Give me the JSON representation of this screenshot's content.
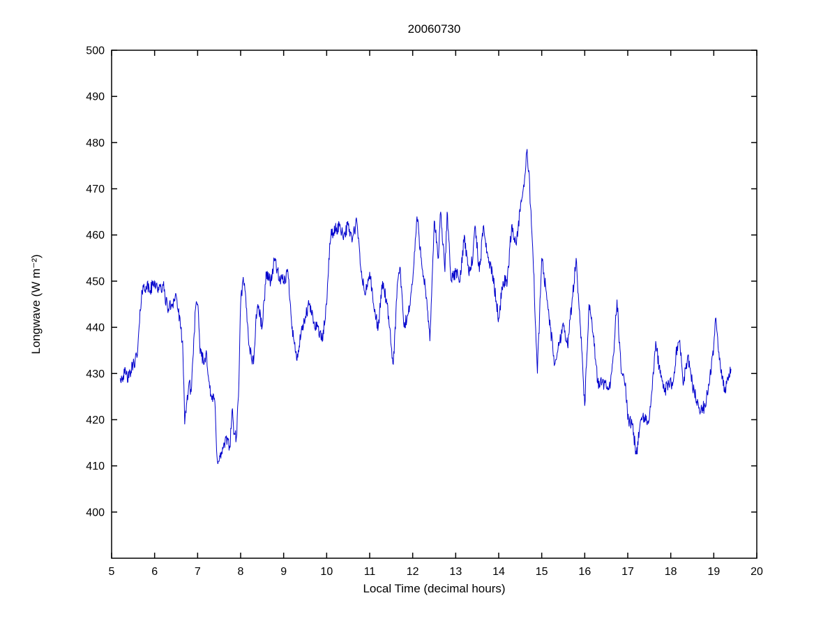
{
  "figure": {
    "background": "#ffffff"
  },
  "chart_data": {
    "type": "line",
    "title": "20060730",
    "xlabel": "Local Time (decimal hours)",
    "ylabel": "Longwave (W m⁻²)",
    "xlim": [
      5,
      20
    ],
    "ylim": [
      390,
      500
    ],
    "xticks": [
      5,
      6,
      7,
      8,
      9,
      10,
      11,
      12,
      13,
      14,
      15,
      16,
      17,
      18,
      19,
      20
    ],
    "yticks": [
      400,
      410,
      420,
      430,
      440,
      450,
      460,
      470,
      480,
      490,
      500
    ],
    "grid": false,
    "legend": "none",
    "axis_color": "#000000",
    "series": [
      {
        "name": "longwave",
        "color": "#0000cc",
        "points": [
          [
            5.2,
            429
          ],
          [
            5.3,
            430
          ],
          [
            5.4,
            429
          ],
          [
            5.5,
            432
          ],
          [
            5.6,
            434
          ],
          [
            5.65,
            441
          ],
          [
            5.7,
            448
          ],
          [
            5.8,
            449
          ],
          [
            5.9,
            448
          ],
          [
            6.0,
            450
          ],
          [
            6.1,
            448
          ],
          [
            6.2,
            449
          ],
          [
            6.3,
            444
          ],
          [
            6.4,
            445
          ],
          [
            6.5,
            447
          ],
          [
            6.6,
            440
          ],
          [
            6.65,
            437
          ],
          [
            6.7,
            419
          ],
          [
            6.75,
            424
          ],
          [
            6.8,
            428
          ],
          [
            6.85,
            426
          ],
          [
            6.95,
            444
          ],
          [
            7.0,
            445
          ],
          [
            7.05,
            436
          ],
          [
            7.15,
            432
          ],
          [
            7.2,
            435
          ],
          [
            7.3,
            425
          ],
          [
            7.4,
            424
          ],
          [
            7.45,
            412
          ],
          [
            7.5,
            411
          ],
          [
            7.6,
            414
          ],
          [
            7.7,
            416
          ],
          [
            7.75,
            414
          ],
          [
            7.8,
            422
          ],
          [
            7.85,
            417
          ],
          [
            7.9,
            416
          ],
          [
            7.95,
            425
          ],
          [
            8.0,
            445
          ],
          [
            8.05,
            450
          ],
          [
            8.1,
            448
          ],
          [
            8.2,
            436
          ],
          [
            8.3,
            432
          ],
          [
            8.35,
            441
          ],
          [
            8.4,
            445
          ],
          [
            8.5,
            440
          ],
          [
            8.6,
            452
          ],
          [
            8.7,
            450
          ],
          [
            8.8,
            455
          ],
          [
            8.9,
            450
          ],
          [
            9.0,
            450
          ],
          [
            9.1,
            452
          ],
          [
            9.2,
            440
          ],
          [
            9.3,
            433
          ],
          [
            9.4,
            438
          ],
          [
            9.5,
            442
          ],
          [
            9.6,
            445
          ],
          [
            9.7,
            441
          ],
          [
            9.8,
            440
          ],
          [
            9.9,
            437
          ],
          [
            10.0,
            445
          ],
          [
            10.05,
            455
          ],
          [
            10.1,
            460
          ],
          [
            10.2,
            461
          ],
          [
            10.3,
            462
          ],
          [
            10.4,
            460
          ],
          [
            10.5,
            462
          ],
          [
            10.6,
            459
          ],
          [
            10.7,
            463
          ],
          [
            10.8,
            452
          ],
          [
            10.9,
            447
          ],
          [
            11.0,
            452
          ],
          [
            11.1,
            444
          ],
          [
            11.2,
            440
          ],
          [
            11.3,
            450
          ],
          [
            11.4,
            445
          ],
          [
            11.5,
            436
          ],
          [
            11.55,
            432
          ],
          [
            11.65,
            450
          ],
          [
            11.7,
            453
          ],
          [
            11.8,
            440
          ],
          [
            11.9,
            443
          ],
          [
            12.0,
            450
          ],
          [
            12.1,
            464
          ],
          [
            12.2,
            455
          ],
          [
            12.3,
            448
          ],
          [
            12.4,
            437
          ],
          [
            12.5,
            463
          ],
          [
            12.6,
            455
          ],
          [
            12.65,
            465
          ],
          [
            12.75,
            452
          ],
          [
            12.8,
            465
          ],
          [
            12.9,
            450
          ],
          [
            13.0,
            452
          ],
          [
            13.1,
            450
          ],
          [
            13.2,
            460
          ],
          [
            13.3,
            452
          ],
          [
            13.4,
            455
          ],
          [
            13.45,
            462
          ],
          [
            13.55,
            452
          ],
          [
            13.65,
            462
          ],
          [
            13.75,
            455
          ],
          [
            13.85,
            452
          ],
          [
            13.95,
            445
          ],
          [
            14.0,
            442
          ],
          [
            14.1,
            450
          ],
          [
            14.2,
            450
          ],
          [
            14.3,
            462
          ],
          [
            14.4,
            458
          ],
          [
            14.5,
            465
          ],
          [
            14.6,
            472
          ],
          [
            14.65,
            478
          ],
          [
            14.7,
            474
          ],
          [
            14.8,
            455
          ],
          [
            14.9,
            430
          ],
          [
            15.0,
            455
          ],
          [
            15.1,
            448
          ],
          [
            15.2,
            440
          ],
          [
            15.3,
            432
          ],
          [
            15.4,
            436
          ],
          [
            15.5,
            441
          ],
          [
            15.6,
            436
          ],
          [
            15.7,
            445
          ],
          [
            15.8,
            455
          ],
          [
            15.9,
            440
          ],
          [
            16.0,
            423
          ],
          [
            16.1,
            445
          ],
          [
            16.2,
            438
          ],
          [
            16.3,
            428
          ],
          [
            16.4,
            428
          ],
          [
            16.5,
            427
          ],
          [
            16.6,
            428
          ],
          [
            16.7,
            438
          ],
          [
            16.75,
            446
          ],
          [
            16.85,
            430
          ],
          [
            16.95,
            428
          ],
          [
            17.0,
            420
          ],
          [
            17.1,
            419
          ],
          [
            17.2,
            412.5
          ],
          [
            17.3,
            420
          ],
          [
            17.4,
            420
          ],
          [
            17.5,
            420
          ],
          [
            17.6,
            430
          ],
          [
            17.65,
            437
          ],
          [
            17.75,
            430
          ],
          [
            17.85,
            426
          ],
          [
            17.95,
            428
          ],
          [
            18.05,
            428
          ],
          [
            18.15,
            436
          ],
          [
            18.2,
            437
          ],
          [
            18.3,
            428
          ],
          [
            18.4,
            434
          ],
          [
            18.5,
            428
          ],
          [
            18.6,
            424
          ],
          [
            18.7,
            422
          ],
          [
            18.8,
            423
          ],
          [
            18.9,
            428
          ],
          [
            19.0,
            436
          ],
          [
            19.05,
            442
          ],
          [
            19.15,
            432
          ],
          [
            19.25,
            426
          ],
          [
            19.35,
            430
          ],
          [
            19.4,
            431
          ]
        ]
      }
    ]
  }
}
